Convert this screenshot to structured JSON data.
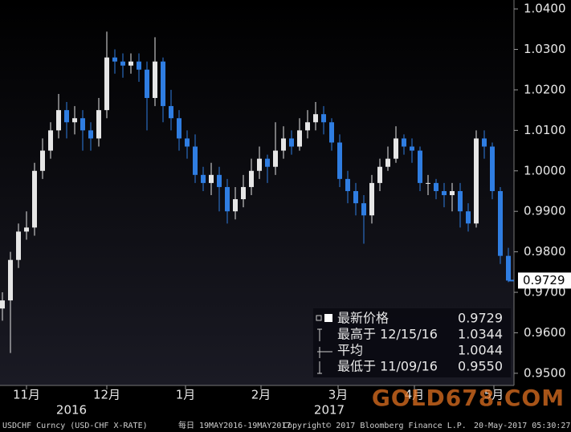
{
  "chart_data": {
    "type": "candlestick",
    "up_color": "#e6e6e6",
    "down_color": "#2f7de1",
    "open": [
      0.966,
      0.968,
      0.978,
      0.985,
      0.986,
      1.0,
      1.005,
      1.01,
      1.015,
      1.012,
      1.013,
      1.01,
      1.008,
      1.015,
      1.028,
      1.027,
      1.026,
      1.027,
      1.025,
      1.018,
      1.027,
      1.016,
      1.013,
      1.008,
      1.006,
      0.999,
      0.997,
      0.999,
      0.996,
      0.99,
      0.993,
      0.996,
      1.0,
      1.003,
      1.001,
      1.005,
      1.008,
      1.006,
      1.01,
      1.012,
      1.014,
      1.012,
      1.007,
      0.998,
      0.995,
      0.992,
      0.989,
      0.997,
      1.001,
      1.003,
      1.008,
      1.006,
      1.005,
      0.997,
      0.997,
      0.995,
      0.994,
      0.995,
      0.99,
      0.987,
      1.008,
      1.006,
      0.995,
      0.979
    ],
    "high": [
      0.97,
      0.98,
      0.987,
      0.99,
      1.002,
      1.008,
      1.012,
      1.019,
      1.017,
      1.016,
      1.015,
      1.012,
      1.018,
      1.0344,
      1.03,
      1.029,
      1.029,
      1.029,
      1.027,
      1.033,
      1.028,
      1.02,
      1.015,
      1.01,
      1.009,
      1.001,
      1.002,
      1.001,
      0.998,
      0.996,
      0.999,
      1.003,
      1.006,
      1.004,
      1.012,
      1.011,
      1.01,
      1.013,
      1.015,
      1.017,
      1.016,
      1.013,
      1.009,
      1.0,
      0.997,
      0.994,
      0.999,
      1.003,
      1.006,
      1.011,
      1.009,
      1.008,
      1.006,
      0.999,
      0.998,
      0.997,
      0.997,
      0.997,
      0.992,
      1.01,
      1.01,
      1.007,
      0.996,
      0.981
    ],
    "low": [
      0.963,
      0.955,
      0.976,
      0.983,
      0.984,
      0.998,
      1.003,
      1.008,
      1.008,
      1.009,
      1.005,
      1.005,
      1.006,
      1.013,
      1.024,
      1.023,
      1.024,
      1.022,
      1.01,
      1.016,
      1.012,
      1.01,
      1.005,
      1.003,
      0.997,
      0.995,
      0.994,
      0.99,
      0.987,
      0.988,
      0.991,
      0.994,
      0.998,
      0.997,
      0.999,
      1.003,
      1.004,
      1.005,
      1.008,
      1.01,
      1.009,
      1.005,
      0.996,
      0.992,
      0.989,
      0.982,
      0.987,
      0.995,
      1.0,
      1.002,
      1.004,
      1.002,
      0.995,
      0.994,
      0.993,
      0.991,
      0.99,
      0.986,
      0.985,
      0.986,
      1.003,
      0.993,
      0.977,
      0.9725
    ],
    "close": [
      0.968,
      0.978,
      0.985,
      0.986,
      1.0,
      1.005,
      1.01,
      1.015,
      1.012,
      1.013,
      1.01,
      1.008,
      1.015,
      1.028,
      1.027,
      1.026,
      1.027,
      1.025,
      1.018,
      1.027,
      1.016,
      1.013,
      1.008,
      1.006,
      0.999,
      0.997,
      0.999,
      0.996,
      0.99,
      0.993,
      0.996,
      1.0,
      1.003,
      1.001,
      1.005,
      1.008,
      1.006,
      1.01,
      1.012,
      1.014,
      1.012,
      1.007,
      0.998,
      0.995,
      0.992,
      0.989,
      0.997,
      1.001,
      1.003,
      1.008,
      1.006,
      1.005,
      0.997,
      0.997,
      0.995,
      0.994,
      0.995,
      0.99,
      0.987,
      1.008,
      1.006,
      0.995,
      0.979,
      0.9729
    ],
    "xlim": [
      -0.3,
      63.7
    ],
    "xticks": [
      {
        "value": 3,
        "label": "11月"
      },
      {
        "value": 13,
        "label": "12月"
      },
      {
        "value": 22.8,
        "label": "1月"
      },
      {
        "value": 32.2,
        "label": "2月"
      },
      {
        "value": 41.8,
        "label": "3月"
      },
      {
        "value": 51.3,
        "label": "4月"
      },
      {
        "value": 61.2,
        "label": "5月"
      }
    ],
    "year_ticks": [
      {
        "value": 8.6,
        "label": "2016"
      },
      {
        "value": 40.7,
        "label": "2017"
      }
    ],
    "ylim": [
      0.947,
      1.0422
    ],
    "yticks": [
      {
        "value": 0.95,
        "label": "0.9500"
      },
      {
        "value": 0.96,
        "label": "0.9600"
      },
      {
        "value": 0.97,
        "label": "0.9700"
      },
      {
        "value": 0.98,
        "label": "0.9800"
      },
      {
        "value": 0.99,
        "label": "0.9900"
      },
      {
        "value": 1.0,
        "label": "1.0000"
      },
      {
        "value": 1.01,
        "label": "1.0100"
      },
      {
        "value": 1.02,
        "label": "1.0200"
      },
      {
        "value": 1.03,
        "label": "1.0300"
      },
      {
        "value": 1.04,
        "label": "1.0400"
      }
    ],
    "stats": {
      "labels": [
        "最新价格",
        "最高于 12/15/16",
        "平均",
        "最低于 11/09/16"
      ],
      "values": [
        0.9729,
        1.0344,
        1.0044,
        0.955
      ],
      "value_labels": [
        "0.9729",
        "1.0344",
        "1.0044",
        "0.9550"
      ]
    },
    "watermark": "GOLD678.COM",
    "footer": [
      "USDCHF Curncy (USD-CHF X-RATE)",
      "每日 19MAY2016-19MAY2017",
      "Copyright© 2017 Bloomberg Finance L.P.",
      "20-May-2017 05:30:27"
    ]
  }
}
